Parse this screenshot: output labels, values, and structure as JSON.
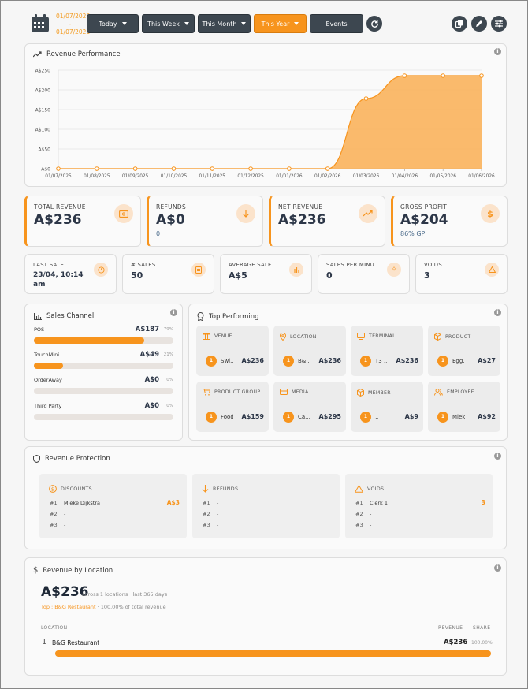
{
  "header": {
    "date_from": "01/07/2025",
    "date_sep": "-",
    "date_to": "01/07/2026",
    "filters": [
      {
        "label": "Today"
      },
      {
        "label": "This Week"
      },
      {
        "label": "This Month"
      },
      {
        "label": "This Year",
        "active": true
      },
      {
        "label": "Events"
      }
    ]
  },
  "revenue_performance": {
    "title": "Revenue Performance",
    "chart_data": {
      "type": "area",
      "x": [
        "01/07/2025",
        "01/08/2025",
        "01/09/2025",
        "01/10/2025",
        "01/11/2025",
        "01/12/2025",
        "01/01/2026",
        "01/02/2026",
        "01/03/2026",
        "01/04/2026",
        "01/05/2026",
        "01/06/2026"
      ],
      "values": [
        0,
        0,
        0,
        0,
        0,
        0,
        0,
        0,
        178,
        236,
        236,
        236
      ],
      "y_ticks": [
        "A$0",
        "A$50",
        "A$100",
        "A$150",
        "A$200",
        "A$250"
      ],
      "ylim": [
        0,
        250
      ],
      "grid": true,
      "color": "#f7941d"
    }
  },
  "kpis": [
    {
      "label": "TOTAL REVENUE",
      "value": "A$236",
      "sub": ""
    },
    {
      "label": "REFUNDS",
      "value": "A$0",
      "sub": "0"
    },
    {
      "label": "NET REVENUE",
      "value": "A$236",
      "sub": ""
    },
    {
      "label": "GROSS PROFIT",
      "value": "A$204",
      "sub": "86% GP"
    }
  ],
  "stats": [
    {
      "label": "LAST SALE",
      "value": "23/04, 10:14 am"
    },
    {
      "label": "# SALES",
      "value": "50"
    },
    {
      "label": "AVERAGE SALE",
      "value": "A$5"
    },
    {
      "label": "SALES PER MINU...",
      "value": "0"
    },
    {
      "label": "VOIDS",
      "value": "3"
    }
  ],
  "sales_channel": {
    "title": "Sales Channel",
    "items": [
      {
        "name": "POS",
        "value": "A$187",
        "pct": "79%",
        "share": 79
      },
      {
        "name": "TouchMini",
        "value": "A$49",
        "pct": "21%",
        "share": 21
      },
      {
        "name": "OrderAway",
        "value": "A$0",
        "pct": "0%",
        "share": 0
      },
      {
        "name": "Third Party",
        "value": "A$0",
        "pct": "0%",
        "share": 0
      }
    ]
  },
  "top_performing": {
    "title": "Top Performing",
    "tiles": [
      {
        "label": "VENUE",
        "rank": "1",
        "name": "Swi...",
        "value": "A$236"
      },
      {
        "label": "LOCATION",
        "rank": "1",
        "name": "B&...",
        "value": "A$236"
      },
      {
        "label": "TERMINAL",
        "rank": "1",
        "name": "T3 ...",
        "value": "A$236"
      },
      {
        "label": "PRODUCT",
        "rank": "1",
        "name": "Egg...",
        "value": "A$27"
      },
      {
        "label": "PRODUCT GROUP",
        "rank": "1",
        "name": "Food",
        "value": "A$159"
      },
      {
        "label": "MEDIA",
        "rank": "1",
        "name": "Ca...",
        "value": "A$295"
      },
      {
        "label": "MEMBER",
        "rank": "1",
        "name": "1",
        "value": "A$9"
      },
      {
        "label": "EMPLOYEE",
        "rank": "1",
        "name": "Miek...",
        "value": "A$92"
      }
    ]
  },
  "revenue_protection": {
    "title": "Revenue Protection",
    "panels": [
      {
        "label": "DISCOUNTS",
        "rows": [
          {
            "k": "#1",
            "t": "Mieke Dijkstra",
            "a": "A$3"
          },
          {
            "k": "#2",
            "t": "-",
            "a": ""
          },
          {
            "k": "#3",
            "t": "-",
            "a": ""
          }
        ]
      },
      {
        "label": "REFUNDS",
        "rows": [
          {
            "k": "#1",
            "t": "-",
            "a": ""
          },
          {
            "k": "#2",
            "t": "-",
            "a": ""
          },
          {
            "k": "#3",
            "t": "-",
            "a": ""
          }
        ]
      },
      {
        "label": "VOIDS",
        "rows": [
          {
            "k": "#1",
            "t": "Clerk 1",
            "a": "3"
          },
          {
            "k": "#2",
            "t": "-",
            "a": ""
          },
          {
            "k": "#3",
            "t": "-",
            "a": ""
          }
        ]
      }
    ]
  },
  "revenue_by_location": {
    "title": "Revenue by Location",
    "total": "A$236",
    "summary": "across 1 locations · last 365 days",
    "top_prefix": "Top : ",
    "top_name": "B&G Restaurant",
    "top_suffix": " · 100.00% of total revenue",
    "col_location": "LOCATION",
    "col_revenue": "REVENUE",
    "col_share": "SHARE",
    "rows": [
      {
        "rank": "1",
        "name": "B&G Restaurant",
        "revenue": "A$236",
        "share": "100.00%",
        "fraction": 1.0
      }
    ]
  }
}
